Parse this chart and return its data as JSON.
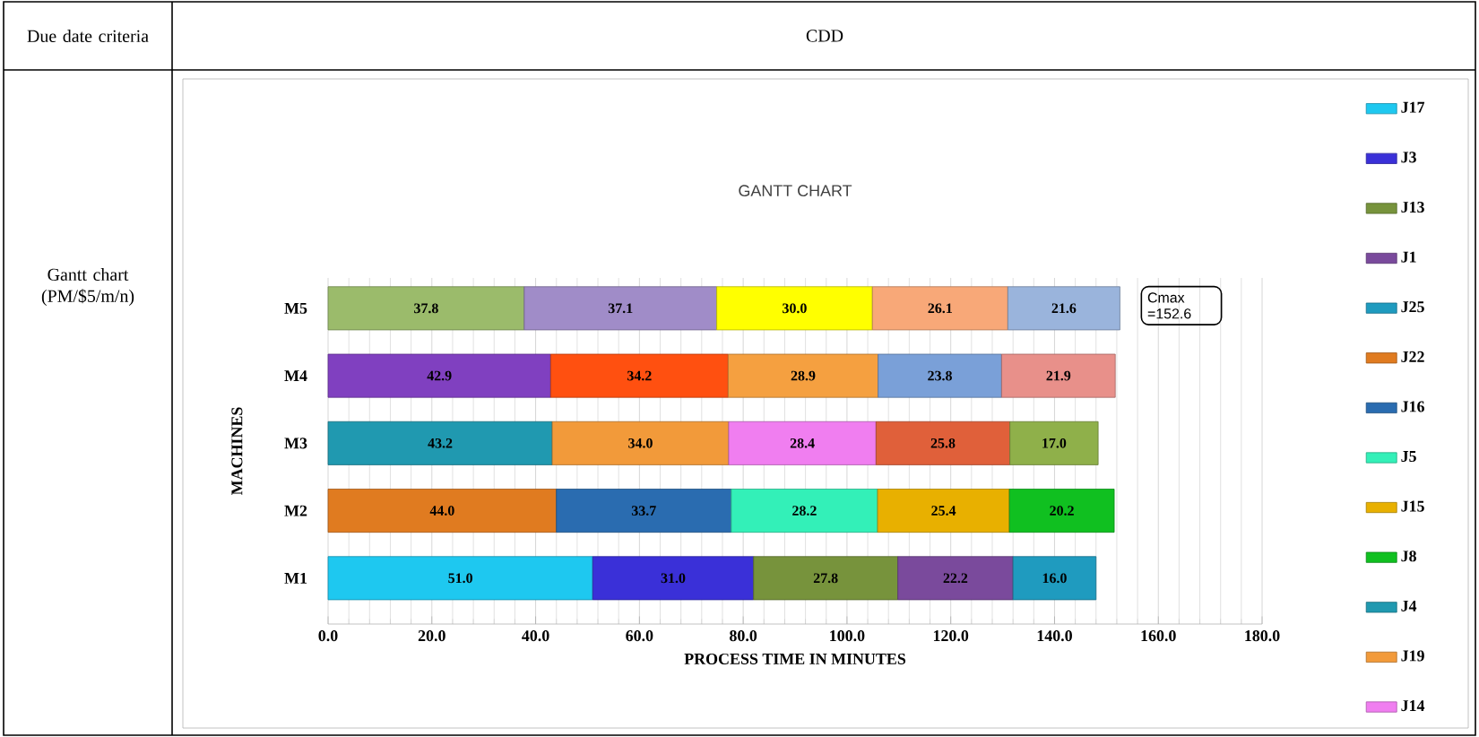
{
  "chart_data": {
    "type": "bar",
    "orientation": "horizontal",
    "stacked": true,
    "title": "GANTT CHART",
    "xlabel": "PROCESS TIME IN MINUTES",
    "ylabel": "MACHINES",
    "categories": [
      "M5",
      "M4",
      "M3",
      "M2",
      "M1"
    ],
    "xlim": [
      0,
      180
    ],
    "xticks": [
      {
        "value": 0,
        "label": "0.0"
      },
      {
        "value": 20,
        "label": "20.0"
      },
      {
        "value": 40,
        "label": "40.0"
      },
      {
        "value": 60,
        "label": "60.0"
      },
      {
        "value": 80,
        "label": "80.0"
      },
      {
        "value": 100,
        "label": "100.0"
      },
      {
        "value": 120,
        "label": "120.0"
      },
      {
        "value": 140,
        "label": "140.0"
      },
      {
        "value": 160,
        "label": "160.0"
      },
      {
        "value": 180,
        "label": "180.0"
      }
    ],
    "grid": "x",
    "legend": "right",
    "series": [
      {
        "name": "J17",
        "color": "#1ec8f0",
        "values": [
          null,
          null,
          null,
          null,
          51.0
        ],
        "value_labels": [
          null,
          null,
          null,
          null,
          "51.0"
        ]
      },
      {
        "name": "J3",
        "color": "#3a30d8",
        "values": [
          null,
          null,
          null,
          null,
          31.0
        ],
        "value_labels": [
          null,
          null,
          null,
          null,
          "31.0"
        ]
      },
      {
        "name": "J13",
        "color": "#77933c",
        "values": [
          null,
          null,
          null,
          null,
          27.8
        ],
        "value_labels": [
          null,
          null,
          null,
          null,
          "27.8"
        ]
      },
      {
        "name": "J1",
        "color": "#7a4a9c",
        "values": [
          null,
          null,
          null,
          null,
          22.2
        ],
        "value_labels": [
          null,
          null,
          null,
          null,
          "22.2"
        ]
      },
      {
        "name": "J25",
        "color": "#1f9bbf",
        "values": [
          null,
          null,
          null,
          null,
          16.0
        ],
        "value_labels": [
          null,
          null,
          null,
          null,
          "16.0"
        ]
      },
      {
        "name": "J22",
        "color": "#e07b20",
        "values": [
          null,
          null,
          null,
          44.0,
          null
        ],
        "value_labels": [
          null,
          null,
          null,
          "44.0",
          null
        ]
      },
      {
        "name": "J16",
        "color": "#2a6cb0",
        "values": [
          null,
          null,
          null,
          33.7,
          null
        ],
        "value_labels": [
          null,
          null,
          null,
          "33.7",
          null
        ]
      },
      {
        "name": "J5",
        "color": "#33f0b8",
        "values": [
          null,
          null,
          null,
          28.2,
          null
        ],
        "value_labels": [
          null,
          null,
          null,
          "28.2",
          null
        ]
      },
      {
        "name": "J15",
        "color": "#e8b000",
        "values": [
          null,
          null,
          null,
          25.4,
          null
        ],
        "value_labels": [
          null,
          null,
          null,
          "25.4",
          null
        ]
      },
      {
        "name": "J8",
        "color": "#10c020",
        "values": [
          null,
          null,
          null,
          20.2,
          null
        ],
        "value_labels": [
          null,
          null,
          null,
          "20.2",
          null
        ]
      },
      {
        "name": "J4",
        "color": "#2099b0",
        "values": [
          null,
          null,
          43.2,
          null,
          null
        ],
        "value_labels": [
          null,
          null,
          "43.2",
          null,
          null
        ]
      },
      {
        "name": "J19",
        "color": "#f29a3a",
        "values": [
          null,
          null,
          34.0,
          null,
          null
        ],
        "value_labels": [
          null,
          null,
          "34.0",
          null,
          null
        ]
      },
      {
        "name": "J14",
        "color": "#f07ef0",
        "values": [
          null,
          null,
          28.4,
          null,
          null
        ],
        "value_labels": [
          null,
          null,
          "28.4",
          null,
          null
        ]
      },
      {
        "color": "#e0603a",
        "values": [
          null,
          null,
          25.8,
          null,
          null
        ],
        "value_labels": [
          null,
          null,
          "25.8",
          null,
          null
        ]
      },
      {
        "color": "#8fb04a",
        "values": [
          null,
          null,
          17.0,
          null,
          null
        ],
        "value_labels": [
          null,
          null,
          "17.0",
          null,
          null
        ]
      },
      {
        "color": "#8040c0",
        "values": [
          null,
          42.9,
          null,
          null,
          null
        ],
        "value_labels": [
          null,
          "42.9",
          null,
          null,
          null
        ]
      },
      {
        "color": "#ff5010",
        "values": [
          null,
          34.2,
          null,
          null,
          null
        ],
        "value_labels": [
          null,
          "34.2",
          null,
          null,
          null
        ]
      },
      {
        "color": "#f5a040",
        "values": [
          null,
          28.9,
          null,
          null,
          null
        ],
        "value_labels": [
          null,
          "28.9",
          null,
          null,
          null
        ]
      },
      {
        "color": "#7aa0d8",
        "values": [
          null,
          23.8,
          null,
          null,
          null
        ],
        "value_labels": [
          null,
          "23.8",
          null,
          null,
          null
        ]
      },
      {
        "color": "#e8908a",
        "values": [
          null,
          21.9,
          null,
          null,
          null
        ],
        "value_labels": [
          null,
          "21.9",
          null,
          null,
          null
        ]
      },
      {
        "color": "#9bbb6b",
        "values": [
          37.8,
          null,
          null,
          null,
          null
        ],
        "value_labels": [
          "37.8",
          null,
          null,
          null,
          null
        ]
      },
      {
        "color": "#a08cc8",
        "values": [
          37.1,
          null,
          null,
          null,
          null
        ],
        "value_labels": [
          "37.1",
          null,
          null,
          null,
          null
        ]
      },
      {
        "color": "#ffff00",
        "values": [
          30.0,
          null,
          null,
          null,
          null
        ],
        "value_labels": [
          "30.0",
          null,
          null,
          null,
          null
        ]
      },
      {
        "color": "#f8a878",
        "values": [
          26.1,
          null,
          null,
          null,
          null
        ],
        "value_labels": [
          "26.1",
          null,
          null,
          null,
          null
        ]
      },
      {
        "color": "#9ab4dc",
        "values": [
          21.6,
          null,
          null,
          null,
          null
        ],
        "value_labels": [
          "21.6",
          null,
          null,
          null,
          null
        ]
      }
    ],
    "annotations": [
      "Due date criteria",
      "CDD",
      "Gantt chart (PM/$5/m/n)",
      "Cmax =152.6"
    ]
  }
}
